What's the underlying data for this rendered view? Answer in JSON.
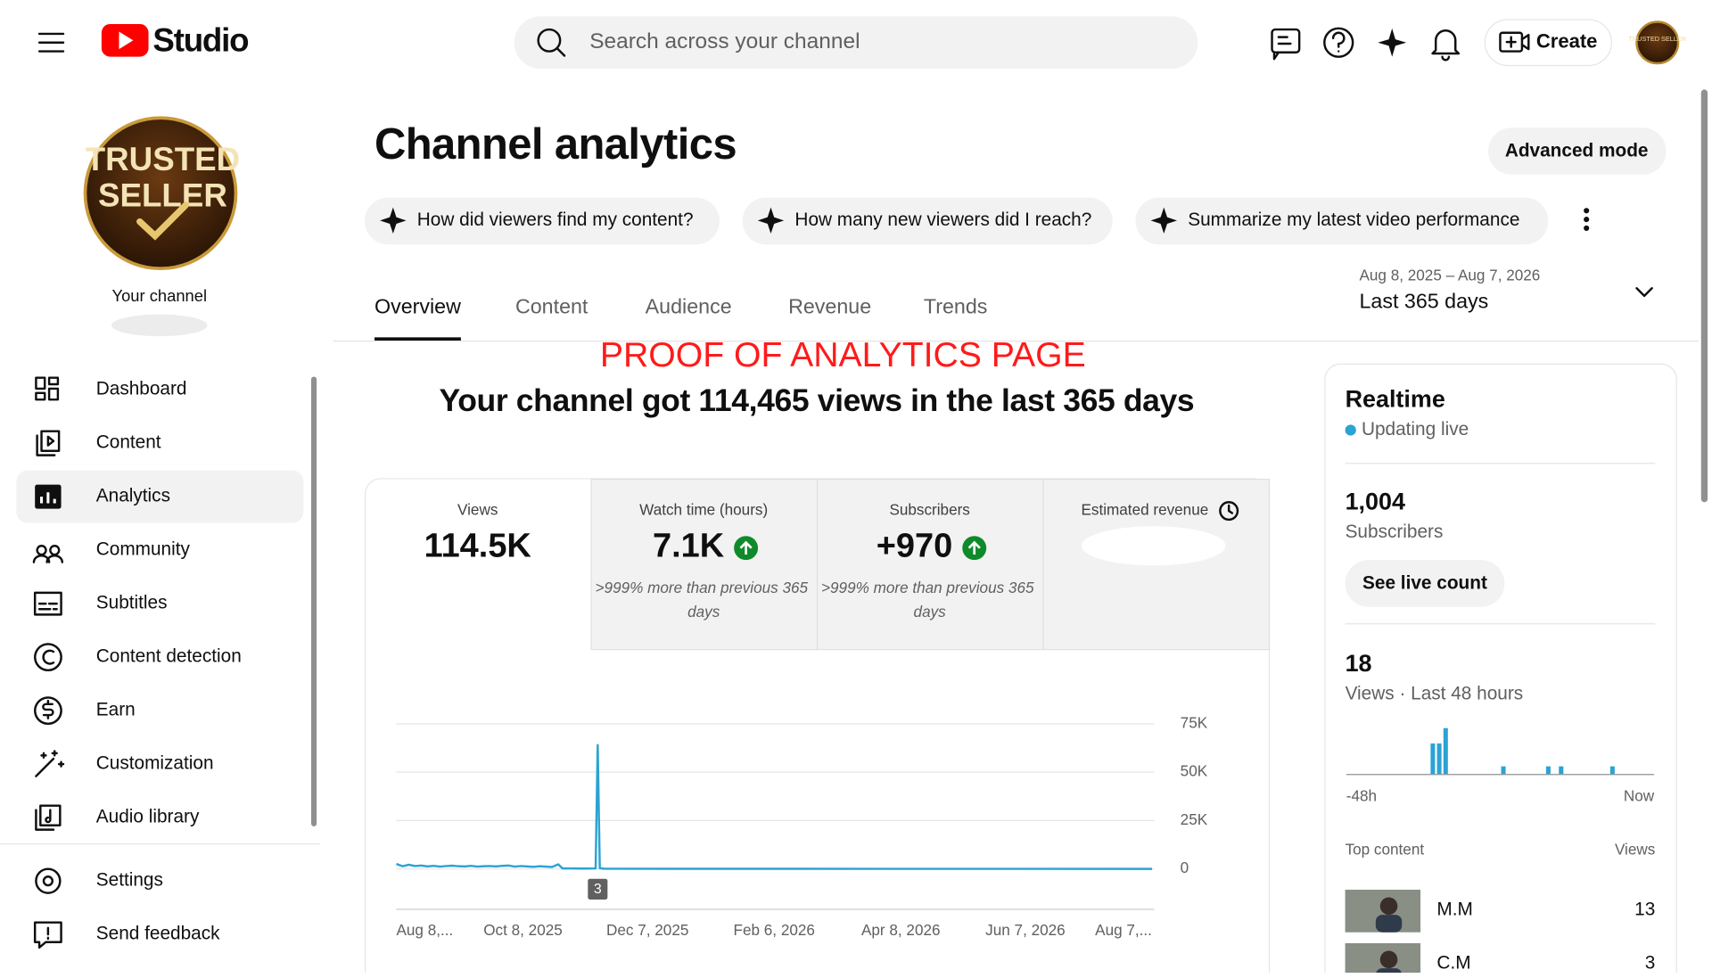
{
  "header": {
    "logo_text": "Studio",
    "search_placeholder": "Search across your channel",
    "create": "Create",
    "avatar_text": "TRUSTED SELLER"
  },
  "sidebar": {
    "avatar_lines": [
      "TRUSTED",
      "SELLER"
    ],
    "channel_label": "Your channel",
    "nav": [
      "Dashboard",
      "Content",
      "Analytics",
      "Community",
      "Subtitles",
      "Content detection",
      "Earn",
      "Customization",
      "Audio library"
    ],
    "active_index": 2,
    "footer": [
      "Settings",
      "Send feedback"
    ]
  },
  "page": {
    "title": "Channel analytics",
    "advanced_mode": "Advanced mode",
    "prompts": [
      "How did viewers find my content?",
      "How many new viewers did I reach?",
      "Summarize my latest video performance"
    ],
    "date_range": "Aug 8, 2025 – Aug 7, 2026",
    "period": "Last 365 days",
    "tabs": [
      "Overview",
      "Content",
      "Audience",
      "Revenue",
      "Trends"
    ],
    "active_tab": 0,
    "annotation": "PROOF OF ANALYTICS PAGE",
    "headline": "Your channel got 114,465 views in the last 365 days"
  },
  "metrics": [
    {
      "label": "Views",
      "value": "114.5K"
    },
    {
      "label": "Watch time (hours)",
      "value": "7.1K",
      "note": ">999% more than previous 365 days"
    },
    {
      "label": "Subscribers",
      "value": "+970",
      "note": ">999% more than previous 365 days"
    },
    {
      "label": "Estimated revenue"
    }
  ],
  "realtime": {
    "title": "Realtime",
    "status": "Updating live",
    "subscribers": "1,004",
    "subscribers_label": "Subscribers",
    "live_count_button": "See live count",
    "views": "18",
    "views_label": "Views · Last 48 hours",
    "top_content_label": "Top content",
    "views_column": "Views",
    "top_content": [
      {
        "title": "M.M",
        "views": "13"
      },
      {
        "title": "C.M",
        "views": "3"
      }
    ]
  },
  "chart_data": [
    {
      "type": "line",
      "x": [
        0,
        3,
        6,
        9,
        12,
        15,
        18,
        21,
        24,
        27,
        30,
        33,
        36,
        39,
        42,
        45,
        48,
        51,
        54,
        57,
        60,
        63,
        66,
        69,
        72,
        75,
        78,
        80,
        90,
        96,
        97,
        98,
        100,
        130,
        180,
        240,
        300,
        364
      ],
      "series": [
        {
          "name": "Views",
          "color": "#2ba3d4",
          "values": [
            2600,
            1400,
            2200,
            1500,
            1800,
            1300,
            1600,
            1200,
            1500,
            1700,
            1400,
            1300,
            1600,
            1200,
            1400,
            1500,
            1300,
            1600,
            1800,
            1200,
            1500,
            1300,
            1100,
            1400,
            1200,
            1000,
            2400,
            300,
            200,
            300,
            64000,
            400,
            150,
            100,
            80,
            60,
            50,
            40
          ]
        }
      ],
      "xlim": [
        0,
        365
      ],
      "xticks": [
        {
          "value": 0,
          "label": "Aug 8,..."
        },
        {
          "value": 61,
          "label": "Oct 8, 2025"
        },
        {
          "value": 121,
          "label": "Dec 7, 2025"
        },
        {
          "value": 182,
          "label": "Feb 6, 2026"
        },
        {
          "value": 243,
          "label": "Apr 8, 2026"
        },
        {
          "value": 303,
          "label": "Jun 7, 2026"
        },
        {
          "value": 364,
          "label": "Aug 7,..."
        }
      ],
      "ylim": [
        0,
        75000
      ],
      "yticks": [
        {
          "value": 0,
          "label": "0"
        },
        {
          "value": 25000,
          "label": "25K"
        },
        {
          "value": 50000,
          "label": "50K"
        },
        {
          "value": 75000,
          "label": "75K"
        }
      ],
      "grid": true,
      "annotations": [
        {
          "x": 97,
          "text": "3"
        }
      ]
    },
    {
      "type": "bar",
      "values": [
        0,
        0,
        0,
        0,
        0,
        0,
        0,
        0,
        0,
        0,
        0,
        0,
        0,
        4,
        4,
        6,
        0,
        0,
        0,
        0,
        0,
        0,
        0,
        0,
        1,
        0,
        0,
        0,
        0,
        0,
        0,
        1,
        0,
        1,
        0,
        0,
        0,
        0,
        0,
        0,
        0,
        1,
        0,
        0,
        0,
        0,
        0,
        0
      ],
      "color": "#2ba3d4",
      "xlim": [
        0,
        48
      ],
      "xticks": [
        {
          "value": 0,
          "label": "-48h"
        },
        {
          "value": 48,
          "label": "Now"
        }
      ],
      "ylim": [
        0,
        6
      ]
    }
  ]
}
